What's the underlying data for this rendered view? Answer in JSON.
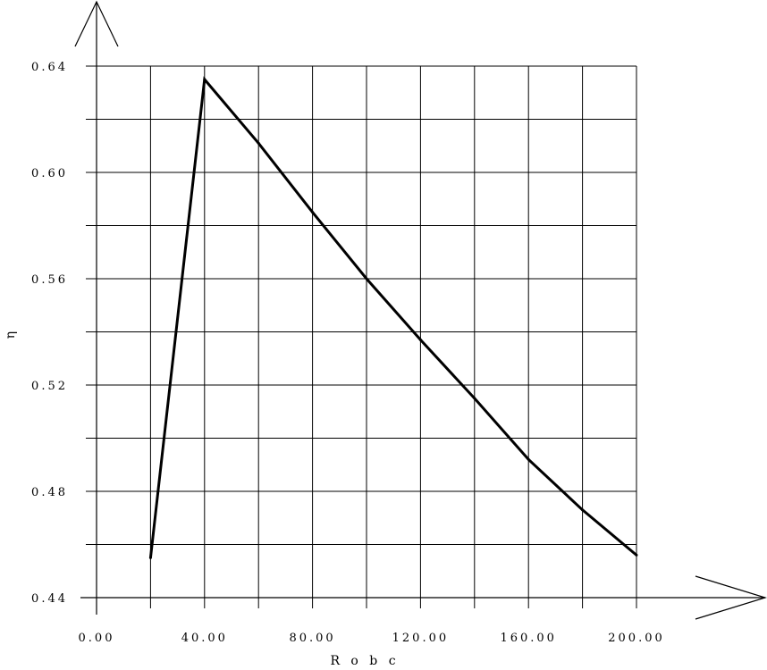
{
  "chart_data": {
    "type": "line",
    "title": "",
    "xlabel": "R o b c",
    "ylabel": "η",
    "xlim": [
      0,
      200
    ],
    "ylim": [
      0.44,
      0.64
    ],
    "grid": true,
    "x_ticks": [
      0,
      20,
      40,
      60,
      80,
      100,
      120,
      140,
      160,
      180,
      200
    ],
    "x_tick_labels": [
      "0.00",
      "",
      "40.00",
      "",
      "80.00",
      "",
      "120.00",
      "",
      "160.00",
      "",
      "200.00"
    ],
    "y_ticks": [
      0.44,
      0.46,
      0.48,
      0.5,
      0.52,
      0.54,
      0.56,
      0.58,
      0.6,
      0.62,
      0.64
    ],
    "y_tick_labels": [
      "0.44",
      "",
      "0.48",
      "",
      "0.52",
      "",
      "0.56",
      "",
      "0.60",
      "",
      "0.64"
    ],
    "series": [
      {
        "x": [
          20,
          40,
          60,
          80,
          100,
          120,
          140,
          160,
          180,
          200
        ],
        "values": [
          0.455,
          0.635,
          0.611,
          0.585,
          0.56,
          0.537,
          0.515,
          0.492,
          0.473,
          0.456
        ]
      }
    ]
  }
}
